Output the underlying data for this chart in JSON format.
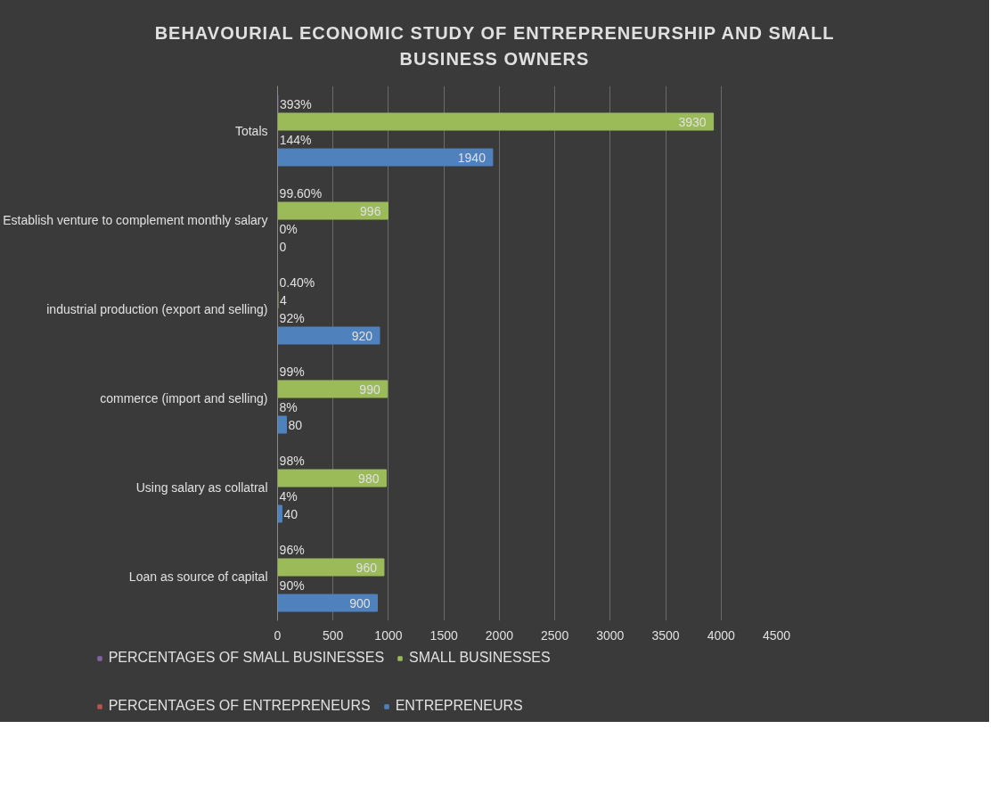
{
  "chart_data": {
    "type": "bar",
    "orientation": "horizontal",
    "title": "BEHAVOURIAL ECONOMIC STUDY OF ENTREPRENEURSHIP AND SMALL BUSINESS OWNERS",
    "categories": [
      "Totals",
      "Establish venture to complement monthly salary",
      "industrial production (export and selling)",
      "commerce (import and selling)",
      "Using salary as collatral",
      "Loan as source of capital"
    ],
    "series": [
      {
        "name": "PERCENTAGES OF SMALL BUSINESSES",
        "color": "#8064a2",
        "values": [
          3.93,
          0.996,
          0.004,
          0.99,
          0.98,
          0.96
        ],
        "value_labels": [
          "393%",
          "99.60%",
          "0.40%",
          "99%",
          "98%",
          "96%"
        ]
      },
      {
        "name": "SMALL BUSINESSES",
        "color": "#9bbb59",
        "values": [
          3930,
          996,
          4,
          990,
          980,
          960
        ],
        "value_labels": [
          "3930",
          "996",
          "4",
          "990",
          "980",
          "960"
        ]
      },
      {
        "name": "PERCENTAGES OF ENTREPRENEURS",
        "color": "#c0504d",
        "values": [
          1.44,
          0,
          0.92,
          0.08,
          0.04,
          0.9
        ],
        "value_labels": [
          "144%",
          "0%",
          "92%",
          "8%",
          "4%",
          "90%"
        ]
      },
      {
        "name": "ENTREPRENEURS",
        "color": "#4f81bd",
        "values": [
          1940,
          0,
          920,
          80,
          40,
          900
        ],
        "value_labels": [
          "1940",
          "0",
          "920",
          "80",
          "40",
          "900"
        ]
      }
    ],
    "xlim": [
      0,
      4500
    ],
    "xticks": [
      0,
      500,
      1000,
      1500,
      2000,
      2500,
      3000,
      3500,
      4000,
      4500
    ],
    "grid": "x",
    "legend": "bottom"
  }
}
